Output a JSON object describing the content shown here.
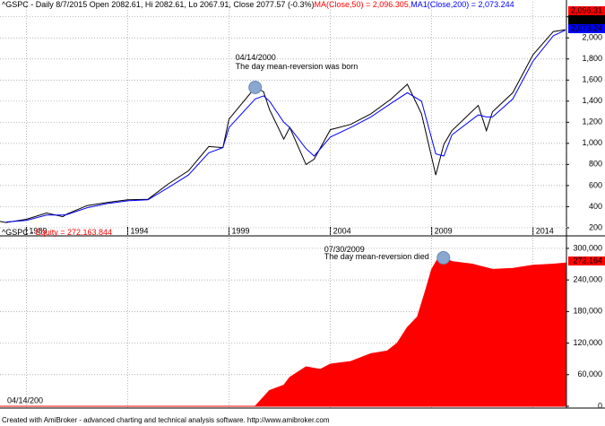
{
  "chart_data": [
    {
      "type": "line",
      "header": [
        "^GSPC - Daily 8/7/2015 Open 2082.61, Hi 2082.61, Lo 2067.91, Close 2077.57 (-0.3%)",
        "MA(Close,50) = 2,096.305,",
        "MA1(Close,200) = 2,073.244"
      ],
      "header_colors": [
        "#000000",
        "#ff0000",
        "#0000ff"
      ],
      "last_labels": [
        "2,096.31",
        "2,077.57",
        "2,073.24"
      ],
      "x": [
        1987.7,
        1988,
        1989,
        1990,
        1990.8,
        1991,
        1992,
        1993,
        1994,
        1995,
        1996,
        1997,
        1998,
        1998.7,
        1999,
        2000.29,
        2000.7,
        2001,
        2001.7,
        2002,
        2002.8,
        2003.2,
        2004,
        2005,
        2006,
        2007,
        2007.8,
        2008.5,
        2009.2,
        2009.6,
        2010,
        2011.3,
        2011.7,
        2012,
        2013,
        2014,
        2015,
        2015.6
      ],
      "series": [
        {
          "color": "#000000",
          "values": [
            260,
            250,
            280,
            340,
            305,
            330,
            410,
            440,
            465,
            470,
            615,
            740,
            970,
            960,
            1230,
            1530,
            1490,
            1320,
            1040,
            1150,
            800,
            850,
            1130,
            1180,
            1280,
            1420,
            1560,
            1280,
            700,
            990,
            1120,
            1360,
            1120,
            1300,
            1480,
            1840,
            2060,
            2078
          ]
        },
        {
          "color": "#0000ff",
          "values": [
            null,
            255,
            270,
            320,
            320,
            325,
            390,
            430,
            455,
            465,
            580,
            700,
            910,
            960,
            1150,
            1420,
            1450,
            1400,
            1200,
            1150,
            950,
            880,
            1060,
            1150,
            1250,
            1380,
            1480,
            1400,
            900,
            880,
            1080,
            1270,
            1250,
            1250,
            1420,
            1780,
            2020,
            2073
          ]
        }
      ],
      "annotation": {
        "date": "04/14/2000",
        "text": "The day mean-reversion was born",
        "x": 2000.29,
        "y": 1530
      },
      "xlim": [
        1987.7,
        2015.65
      ],
      "xticks": [
        1989,
        1994,
        1999,
        2004,
        2009,
        2014
      ],
      "ylim": [
        208,
        2257
      ],
      "yticks": [
        200,
        400,
        600,
        800,
        {
          "value": 1000,
          "label": "1,000"
        },
        {
          "value": 1200,
          "label": "1,200"
        },
        {
          "value": 1400,
          "label": "1,400"
        },
        {
          "value": 1600,
          "label": "1,600"
        },
        {
          "value": 1800,
          "label": "1,800"
        },
        {
          "value": 2000,
          "label": "2,000"
        },
        {
          "value": 2200,
          "label": "2,200"
        }
      ],
      "grid": true
    },
    {
      "type": "area",
      "header": [
        "^GSPC - ",
        "Equity = 272,163.844"
      ],
      "header_colors": [
        "#000000",
        "#ff0000"
      ],
      "last_label": "272,164",
      "start_label": "04/14/200",
      "color": "#ff0000",
      "x": [
        1987.7,
        2000.29,
        2001,
        2001.7,
        2002,
        2002.8,
        2003.5,
        2004,
        2005,
        2006,
        2006.8,
        2007.3,
        2007.8,
        2008.3,
        2008.7,
        2009,
        2009.3,
        2009.58,
        2010,
        2011,
        2012,
        2013,
        2014,
        2015,
        2015.6
      ],
      "values": [
        0,
        0,
        30000,
        40000,
        55000,
        75000,
        70000,
        80000,
        85000,
        100000,
        105000,
        120000,
        150000,
        170000,
        220000,
        260000,
        280000,
        282000,
        275000,
        270000,
        260000,
        262000,
        268000,
        270000,
        272164
      ],
      "annotation": {
        "date": "07/30/2009",
        "text": "The day mean-reversion died",
        "x": 2009.58,
        "y": 282000
      },
      "xlim": [
        1987.7,
        2015.65
      ],
      "xticks": [
        1989,
        1994,
        1999,
        2004,
        2009,
        2014
      ],
      "ylim": [
        -3400,
        318600
      ],
      "yticks": [
        0,
        {
          "value": 60000,
          "label": "60,000"
        },
        {
          "value": 120000,
          "label": "120,000"
        },
        {
          "value": 180000,
          "label": "180,000"
        },
        {
          "value": 240000,
          "label": "240,000"
        },
        {
          "value": 300000,
          "label": "300,000"
        }
      ],
      "grid": true
    }
  ],
  "footer": "Created with AmiBroker - advanced charting and technical analysis software. http://www.amibroker.com"
}
